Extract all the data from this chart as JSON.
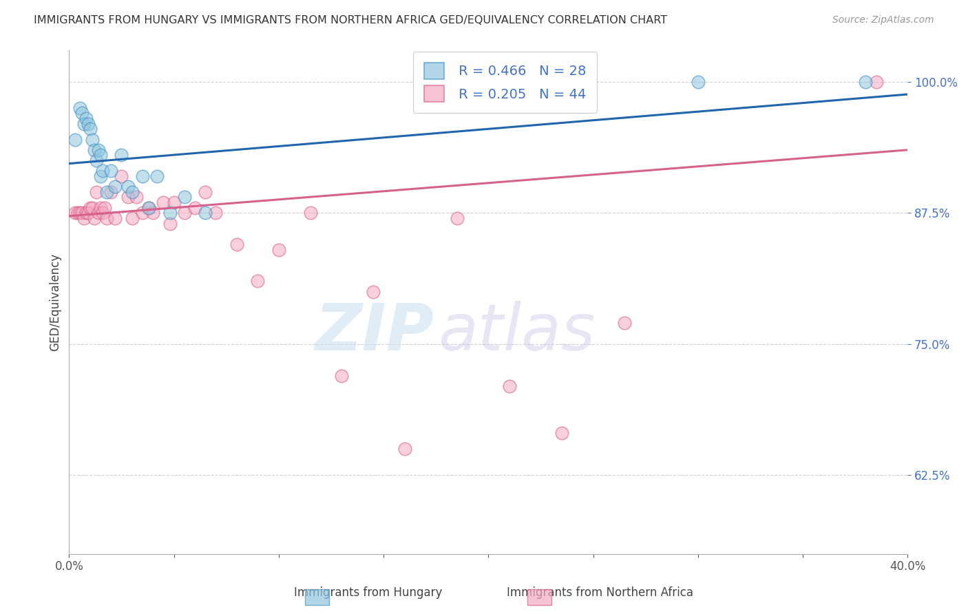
{
  "title": "IMMIGRANTS FROM HUNGARY VS IMMIGRANTS FROM NORTHERN AFRICA GED/EQUIVALENCY CORRELATION CHART",
  "source": "Source: ZipAtlas.com",
  "ylabel": "GED/Equivalency",
  "y_tick_labels": [
    "62.5%",
    "75.0%",
    "87.5%",
    "100.0%"
  ],
  "y_tick_values": [
    0.625,
    0.75,
    0.875,
    1.0
  ],
  "xlim": [
    0.0,
    0.4
  ],
  "ylim": [
    0.55,
    1.03
  ],
  "legend_r_blue": "R = 0.466",
  "legend_n_blue": "N = 28",
  "legend_r_pink": "R = 0.205",
  "legend_n_pink": "N = 44",
  "blue_label": "Immigrants from Hungary",
  "pink_label": "Immigrants from Northern Africa",
  "blue_color": "#92c5de",
  "pink_color": "#f4a9c0",
  "blue_edge_color": "#4393c3",
  "pink_edge_color": "#d6618a",
  "blue_line_color": "#2166ac",
  "pink_line_color": "#d6618a",
  "watermark_zip": "ZIP",
  "watermark_atlas": "atlas",
  "blue_x": [
    0.003,
    0.005,
    0.006,
    0.007,
    0.008,
    0.009,
    0.01,
    0.011,
    0.012,
    0.013,
    0.014,
    0.015,
    0.015,
    0.016,
    0.018,
    0.02,
    0.022,
    0.025,
    0.028,
    0.03,
    0.035,
    0.038,
    0.042,
    0.048,
    0.055,
    0.065,
    0.3,
    0.38
  ],
  "blue_y": [
    0.945,
    0.975,
    0.97,
    0.96,
    0.965,
    0.96,
    0.955,
    0.945,
    0.935,
    0.925,
    0.935,
    0.93,
    0.91,
    0.915,
    0.895,
    0.915,
    0.9,
    0.93,
    0.9,
    0.895,
    0.91,
    0.88,
    0.91,
    0.875,
    0.89,
    0.875,
    1.0,
    1.0
  ],
  "pink_x": [
    0.003,
    0.004,
    0.005,
    0.006,
    0.007,
    0.008,
    0.009,
    0.01,
    0.011,
    0.012,
    0.013,
    0.014,
    0.015,
    0.016,
    0.017,
    0.018,
    0.02,
    0.022,
    0.025,
    0.028,
    0.03,
    0.032,
    0.035,
    0.038,
    0.04,
    0.045,
    0.048,
    0.05,
    0.055,
    0.06,
    0.065,
    0.07,
    0.08,
    0.09,
    0.1,
    0.115,
    0.13,
    0.145,
    0.16,
    0.185,
    0.21,
    0.235,
    0.265,
    0.385
  ],
  "pink_y": [
    0.875,
    0.875,
    0.875,
    0.875,
    0.87,
    0.875,
    0.875,
    0.88,
    0.88,
    0.87,
    0.895,
    0.875,
    0.88,
    0.875,
    0.88,
    0.87,
    0.895,
    0.87,
    0.91,
    0.89,
    0.87,
    0.89,
    0.875,
    0.88,
    0.875,
    0.885,
    0.865,
    0.885,
    0.875,
    0.88,
    0.895,
    0.875,
    0.845,
    0.81,
    0.84,
    0.875,
    0.72,
    0.8,
    0.65,
    0.87,
    0.71,
    0.665,
    0.77,
    1.0
  ]
}
